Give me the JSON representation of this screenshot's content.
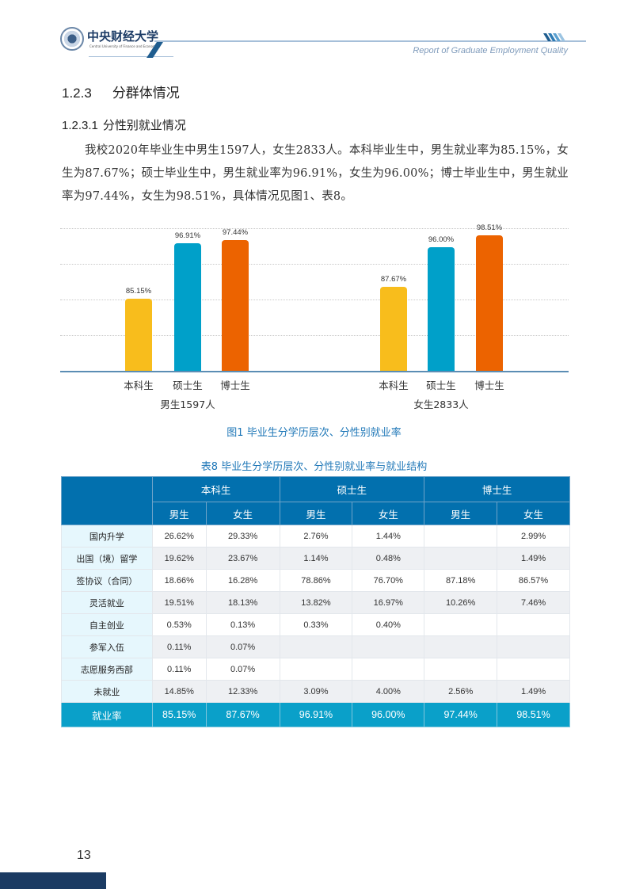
{
  "header": {
    "university_cn": "中央财经大学",
    "university_en": "Central University of Finance and Economics",
    "report_title": "Report of Graduate Employment Quality"
  },
  "section": {
    "h3_number": "1.2.3",
    "h3_title": "分群体情况",
    "h4_number": "1.2.3.1",
    "h4_title": "分性别就业情况",
    "paragraph": "我校2020年毕业生中男生1597人，女生2833人。本科毕业生中，男生就业率为85.15%，女生为87.67%；硕士毕业生中，男生就业率为96.91%，女生为96.00%；博士毕业生中，男生就业率为97.44%，女生为98.51%，具体情况见图1、表8。"
  },
  "colors": {
    "undergrad": "#f8bd1c",
    "master": "#00a0c9",
    "doctor": "#ec6300",
    "table_header": "#0270ae",
    "table_total": "#0aa0c9",
    "caption": "#2078b8"
  },
  "chart_data": {
    "type": "bar",
    "title": "图1 毕业生分学历层次、分性别就业率",
    "groups": [
      "男生1597人",
      "女生2833人"
    ],
    "categories": [
      "本科生",
      "硕士生",
      "博士生"
    ],
    "series": [
      {
        "name": "男生1597人",
        "values": [
          85.15,
          96.91,
          97.44
        ],
        "labels": [
          "85.15%",
          "96.91%",
          "97.44%"
        ]
      },
      {
        "name": "女生2833人",
        "values": [
          87.67,
          96.0,
          98.51
        ],
        "labels": [
          "87.67%",
          "96.00%",
          "98.51%"
        ]
      }
    ],
    "xlabel": "",
    "ylabel": "",
    "ylim": [
      70,
      100
    ],
    "grid": true,
    "legend": "none",
    "axis_labels_visible": false
  },
  "figure_caption": "图1  毕业生分学历层次、分性别就业率",
  "table": {
    "caption": "表8  毕业生分学历层次、分性别就业率与就业结构",
    "levels": [
      "本科生",
      "硕士生",
      "博士生"
    ],
    "genders": [
      "男生",
      "女生",
      "男生",
      "女生",
      "男生",
      "女生"
    ],
    "rows": [
      {
        "label": "国内升学",
        "values": [
          "26.62%",
          "29.33%",
          "2.76%",
          "1.44%",
          "",
          "2.99%"
        ]
      },
      {
        "label": "出国（境）留学",
        "values": [
          "19.62%",
          "23.67%",
          "1.14%",
          "0.48%",
          "",
          "1.49%"
        ]
      },
      {
        "label": "签协议（合同）",
        "values": [
          "18.66%",
          "16.28%",
          "78.86%",
          "76.70%",
          "87.18%",
          "86.57%"
        ]
      },
      {
        "label": "灵活就业",
        "values": [
          "19.51%",
          "18.13%",
          "13.82%",
          "16.97%",
          "10.26%",
          "7.46%"
        ]
      },
      {
        "label": "自主创业",
        "values": [
          "0.53%",
          "0.13%",
          "0.33%",
          "0.40%",
          "",
          ""
        ]
      },
      {
        "label": "参军入伍",
        "values": [
          "0.11%",
          "0.07%",
          "",
          "",
          "",
          ""
        ]
      },
      {
        "label": "志愿服务西部",
        "values": [
          "0.11%",
          "0.07%",
          "",
          "",
          "",
          ""
        ]
      },
      {
        "label": "未就业",
        "values": [
          "14.85%",
          "12.33%",
          "3.09%",
          "4.00%",
          "2.56%",
          "1.49%"
        ]
      }
    ],
    "total": {
      "label": "就业率",
      "values": [
        "85.15%",
        "87.67%",
        "96.91%",
        "96.00%",
        "97.44%",
        "98.51%"
      ]
    }
  },
  "footer": {
    "page_number": "13"
  }
}
